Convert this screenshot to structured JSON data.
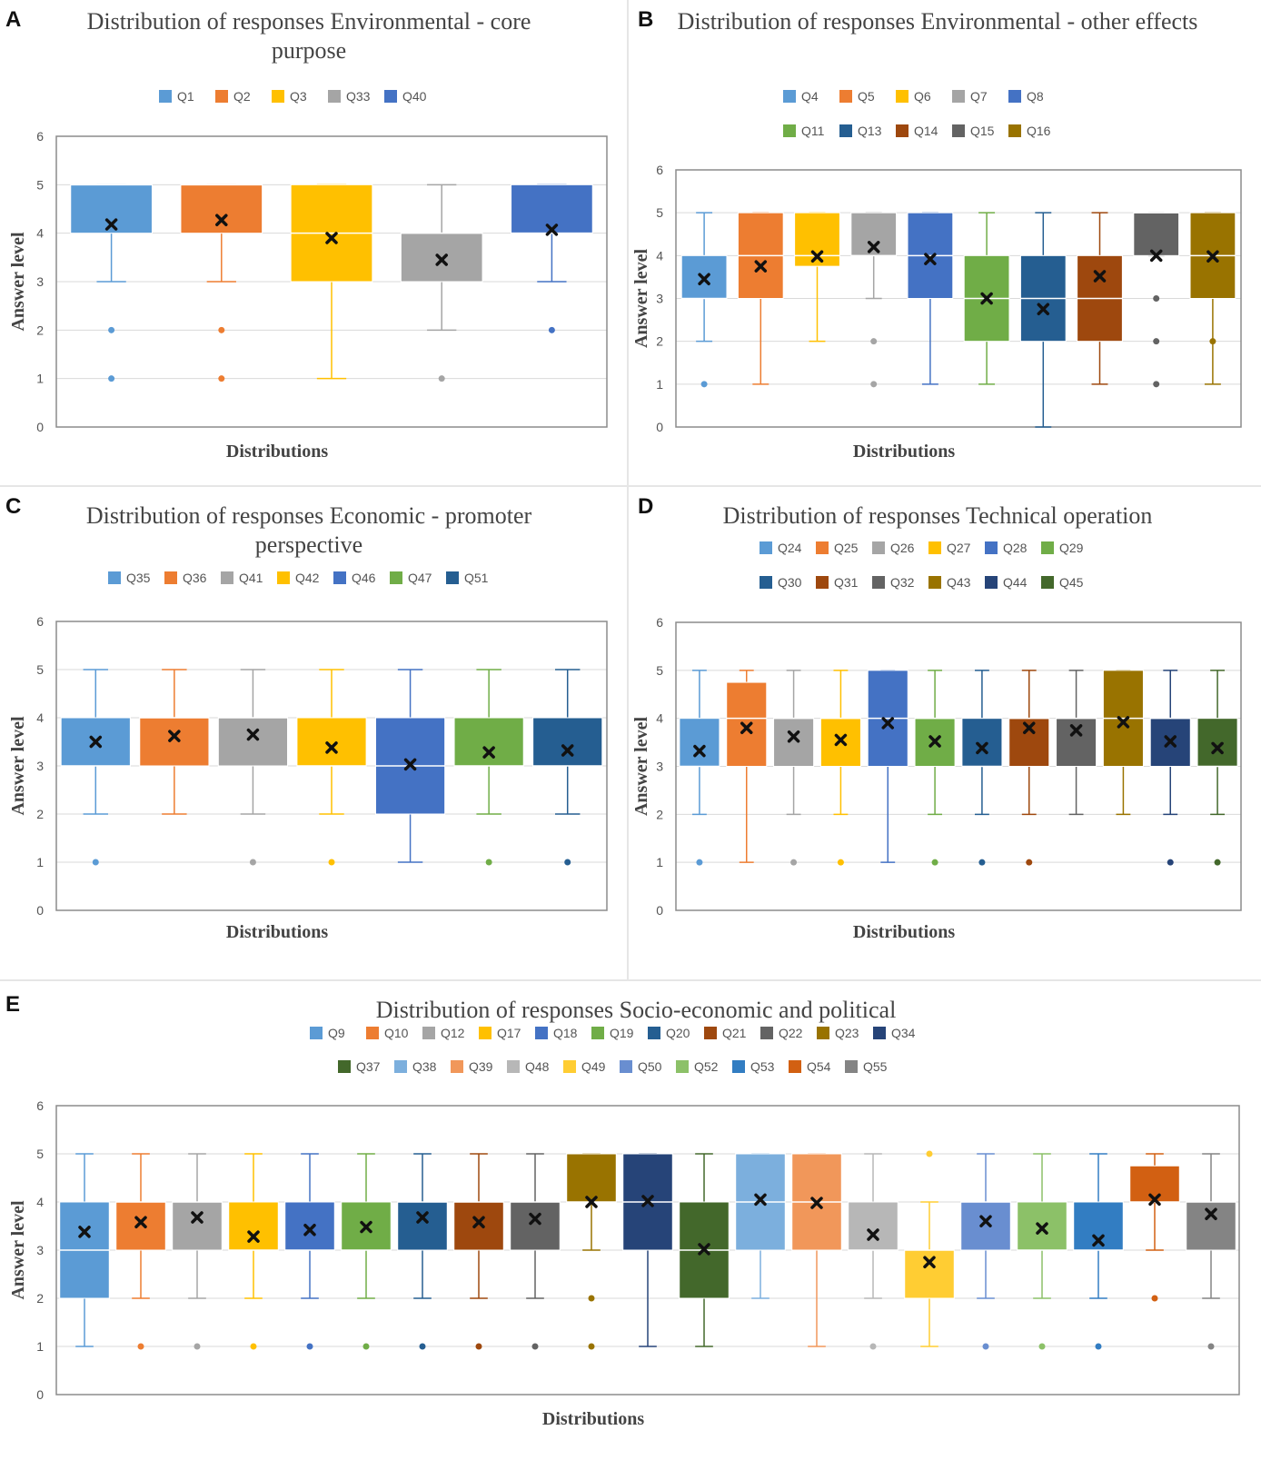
{
  "chart_data": [
    {
      "panel": "A",
      "type": "box",
      "title": "Distribution of responses Environmental - core purpose",
      "xlabel": "Distributions",
      "ylabel": "Answer level",
      "ylim": [
        0,
        6
      ],
      "yticks": [
        "0",
        "1",
        "2",
        "3",
        "4",
        "5",
        "6"
      ],
      "legend_rows": [
        [
          "Q1",
          "Q2",
          "Q3",
          "Q33",
          "Q40"
        ]
      ],
      "series": [
        {
          "name": "Q1",
          "color": "#5B9BD5",
          "min": 3,
          "q1": 4,
          "median": 5,
          "q3": 5,
          "max": 5,
          "mean": 4.18,
          "outliers": [
            2,
            1
          ]
        },
        {
          "name": "Q2",
          "color": "#ED7D31",
          "min": 3,
          "q1": 4,
          "median": 5,
          "q3": 5,
          "max": 5,
          "mean": 4.27,
          "outliers": [
            2,
            1
          ]
        },
        {
          "name": "Q3",
          "color": "#FFC000",
          "min": 1,
          "q1": 3,
          "median": 4,
          "q3": 5,
          "max": 5,
          "mean": 3.9,
          "outliers": []
        },
        {
          "name": "Q33",
          "color": "#A5A5A5",
          "min": 2,
          "q1": 3,
          "median": 4,
          "q3": 4,
          "max": 5,
          "mean": 3.45,
          "outliers": [
            1
          ]
        },
        {
          "name": "Q40",
          "color": "#4472C4",
          "min": 3,
          "q1": 4,
          "median": 4,
          "q3": 5,
          "max": 5,
          "mean": 4.07,
          "outliers": [
            2
          ]
        }
      ]
    },
    {
      "panel": "B",
      "type": "box",
      "title": "Distribution of responses Environmental - other effects",
      "xlabel": "Distributions",
      "ylabel": "Answer level",
      "ylim": [
        0,
        6
      ],
      "yticks": [
        "0",
        "1",
        "2",
        "3",
        "4",
        "5",
        "6"
      ],
      "legend_rows": [
        [
          "Q4",
          "Q5",
          "Q6",
          "Q7",
          "Q8"
        ],
        [
          "Q11",
          "Q13",
          "Q14",
          "Q15",
          "Q16"
        ]
      ],
      "series": [
        {
          "name": "Q4",
          "color": "#5B9BD5",
          "min": 2,
          "q1": 3,
          "median": 3,
          "q3": 4,
          "max": 5,
          "mean": 3.45,
          "outliers": [
            1
          ]
        },
        {
          "name": "Q5",
          "color": "#ED7D31",
          "min": 1,
          "q1": 3,
          "median": 4,
          "q3": 5,
          "max": 5,
          "mean": 3.75,
          "outliers": []
        },
        {
          "name": "Q6",
          "color": "#FFC000",
          "min": 2,
          "q1": 3.75,
          "median": 4,
          "q3": 5,
          "max": 5,
          "mean": 3.98,
          "outliers": []
        },
        {
          "name": "Q7",
          "color": "#A5A5A5",
          "min": 3,
          "q1": 4,
          "median": 4,
          "q3": 5,
          "max": 5,
          "mean": 4.2,
          "outliers": [
            2,
            1
          ]
        },
        {
          "name": "Q8",
          "color": "#4472C4",
          "min": 1,
          "q1": 3,
          "median": 4,
          "q3": 5,
          "max": 5,
          "mean": 3.92,
          "outliers": []
        },
        {
          "name": "Q11",
          "color": "#70AD47",
          "min": 1,
          "q1": 2,
          "median": 3,
          "q3": 4,
          "max": 5,
          "mean": 3.0,
          "outliers": []
        },
        {
          "name": "Q13",
          "color": "#255E91",
          "min": 0,
          "q1": 2,
          "median": 3,
          "q3": 4,
          "max": 5,
          "mean": 2.75,
          "outliers": []
        },
        {
          "name": "Q14",
          "color": "#9E480E",
          "min": 1,
          "q1": 2,
          "median": 3,
          "q3": 4,
          "max": 5,
          "mean": 3.52,
          "outliers": []
        },
        {
          "name": "Q15",
          "color": "#636363",
          "min": 4,
          "q1": 4,
          "median": 5,
          "q3": 5,
          "max": 5,
          "mean": 4.0,
          "outliers": [
            3,
            2,
            1
          ]
        },
        {
          "name": "Q16",
          "color": "#997300",
          "min": 1,
          "q1": 3,
          "median": 4,
          "q3": 5,
          "max": 5,
          "mean": 3.98,
          "outliers": [
            2
          ]
        }
      ]
    },
    {
      "panel": "C",
      "type": "box",
      "title": "Distribution of responses Economic - promoter perspective",
      "xlabel": "Distributions",
      "ylabel": "Answer level",
      "ylim": [
        0,
        6
      ],
      "yticks": [
        "0",
        "1",
        "2",
        "3",
        "4",
        "5",
        "6"
      ],
      "legend_rows": [
        [
          "Q35",
          "Q36",
          "Q41",
          "Q42",
          "Q46",
          "Q47",
          "Q51"
        ]
      ],
      "series": [
        {
          "name": "Q35",
          "color": "#5B9BD5",
          "min": 2,
          "q1": 3,
          "median": 3,
          "q3": 4,
          "max": 5,
          "mean": 3.5,
          "outliers": [
            1
          ]
        },
        {
          "name": "Q36",
          "color": "#ED7D31",
          "min": 2,
          "q1": 3,
          "median": 4,
          "q3": 4,
          "max": 5,
          "mean": 3.62,
          "outliers": []
        },
        {
          "name": "Q41",
          "color": "#A5A5A5",
          "min": 2,
          "q1": 3,
          "median": 4,
          "q3": 4,
          "max": 5,
          "mean": 3.65,
          "outliers": [
            1
          ]
        },
        {
          "name": "Q42",
          "color": "#FFC000",
          "min": 2,
          "q1": 3,
          "median": 3,
          "q3": 4,
          "max": 5,
          "mean": 3.38,
          "outliers": [
            1
          ]
        },
        {
          "name": "Q46",
          "color": "#4472C4",
          "min": 1,
          "q1": 2,
          "median": 3,
          "q3": 4,
          "max": 5,
          "mean": 3.03,
          "outliers": []
        },
        {
          "name": "Q47",
          "color": "#70AD47",
          "min": 2,
          "q1": 3,
          "median": 3,
          "q3": 4,
          "max": 5,
          "mean": 3.28,
          "outliers": [
            1
          ]
        },
        {
          "name": "Q51",
          "color": "#255E91",
          "min": 2,
          "q1": 3,
          "median": 3,
          "q3": 4,
          "max": 5,
          "mean": 3.32,
          "outliers": [
            1
          ]
        }
      ]
    },
    {
      "panel": "D",
      "type": "box",
      "title": "Distribution of responses Technical operation",
      "xlabel": "Distributions",
      "ylabel": "Answer level",
      "ylim": [
        0,
        6
      ],
      "yticks": [
        "0",
        "1",
        "2",
        "3",
        "4",
        "5",
        "6"
      ],
      "legend_rows": [
        [
          "Q24",
          "Q25",
          "Q26",
          "Q27",
          "Q28",
          "Q29"
        ],
        [
          "Q30",
          "Q31",
          "Q32",
          "Q43",
          "Q44",
          "Q45"
        ]
      ],
      "series": [
        {
          "name": "Q24",
          "color": "#5B9BD5",
          "min": 2,
          "q1": 3,
          "median": 3,
          "q3": 4,
          "max": 5,
          "mean": 3.32,
          "outliers": [
            1
          ]
        },
        {
          "name": "Q25",
          "color": "#ED7D31",
          "min": 1,
          "q1": 3,
          "median": 4,
          "q3": 4.75,
          "max": 5,
          "mean": 3.8,
          "outliers": []
        },
        {
          "name": "Q26",
          "color": "#A5A5A5",
          "min": 2,
          "q1": 3,
          "median": 4,
          "q3": 4,
          "max": 5,
          "mean": 3.62,
          "outliers": [
            1
          ]
        },
        {
          "name": "Q27",
          "color": "#FFC000",
          "min": 2,
          "q1": 3,
          "median": 4,
          "q3": 4,
          "max": 5,
          "mean": 3.55,
          "outliers": [
            1
          ]
        },
        {
          "name": "Q28",
          "color": "#4472C4",
          "min": 1,
          "q1": 3,
          "median": 4,
          "q3": 5,
          "max": 5,
          "mean": 3.9,
          "outliers": []
        },
        {
          "name": "Q29",
          "color": "#70AD47",
          "min": 2,
          "q1": 3,
          "median": 4,
          "q3": 4,
          "max": 5,
          "mean": 3.52,
          "outliers": [
            1
          ]
        },
        {
          "name": "Q30",
          "color": "#255E91",
          "min": 2,
          "q1": 3,
          "median": 3,
          "q3": 4,
          "max": 5,
          "mean": 3.38,
          "outliers": [
            1
          ]
        },
        {
          "name": "Q31",
          "color": "#9E480E",
          "min": 2,
          "q1": 3,
          "median": 4,
          "q3": 4,
          "max": 5,
          "mean": 3.8,
          "outliers": [
            1
          ]
        },
        {
          "name": "Q32",
          "color": "#636363",
          "min": 2,
          "q1": 3,
          "median": 4,
          "q3": 4,
          "max": 5,
          "mean": 3.75,
          "outliers": []
        },
        {
          "name": "Q43",
          "color": "#997300",
          "min": 2,
          "q1": 3,
          "median": 4,
          "q3": 5,
          "max": 5,
          "mean": 3.92,
          "outliers": []
        },
        {
          "name": "Q44",
          "color": "#264478",
          "min": 2,
          "q1": 3,
          "median": 4,
          "q3": 4,
          "max": 5,
          "mean": 3.52,
          "outliers": [
            1
          ]
        },
        {
          "name": "Q45",
          "color": "#43682B",
          "min": 2,
          "q1": 3,
          "median": 3,
          "q3": 4,
          "max": 5,
          "mean": 3.38,
          "outliers": [
            1
          ]
        }
      ]
    },
    {
      "panel": "E",
      "type": "box",
      "title": "Distribution of responses Socio-economic and political",
      "xlabel": "Distributions",
      "ylabel": "Answer level",
      "ylim": [
        0,
        6
      ],
      "yticks": [
        "0",
        "1",
        "2",
        "3",
        "4",
        "5",
        "6"
      ],
      "legend_rows": [
        [
          "Q9",
          "Q10",
          "Q12",
          "Q17",
          "Q18",
          "Q19",
          "Q20",
          "Q21",
          "Q22",
          "Q23",
          "Q34"
        ],
        [
          "Q37",
          "Q38",
          "Q39",
          "Q48",
          "Q49",
          "Q50",
          "Q52",
          "Q53",
          "Q54",
          "Q55"
        ]
      ],
      "series": [
        {
          "name": "Q9",
          "color": "#5B9BD5",
          "min": 1,
          "q1": 2,
          "median": 3,
          "q3": 4,
          "max": 5,
          "mean": 3.38,
          "outliers": []
        },
        {
          "name": "Q10",
          "color": "#ED7D31",
          "min": 2,
          "q1": 3,
          "median": 4,
          "q3": 4,
          "max": 5,
          "mean": 3.58,
          "outliers": [
            1
          ]
        },
        {
          "name": "Q12",
          "color": "#A5A5A5",
          "min": 2,
          "q1": 3,
          "median": 4,
          "q3": 4,
          "max": 5,
          "mean": 3.68,
          "outliers": [
            1
          ]
        },
        {
          "name": "Q17",
          "color": "#FFC000",
          "min": 2,
          "q1": 3,
          "median": 3,
          "q3": 4,
          "max": 5,
          "mean": 3.28,
          "outliers": [
            1
          ]
        },
        {
          "name": "Q18",
          "color": "#4472C4",
          "min": 2,
          "q1": 3,
          "median": 3,
          "q3": 4,
          "max": 5,
          "mean": 3.42,
          "outliers": [
            1
          ]
        },
        {
          "name": "Q19",
          "color": "#70AD47",
          "min": 2,
          "q1": 3,
          "median": 3,
          "q3": 4,
          "max": 5,
          "mean": 3.48,
          "outliers": [
            1
          ]
        },
        {
          "name": "Q20",
          "color": "#255E91",
          "min": 2,
          "q1": 3,
          "median": 4,
          "q3": 4,
          "max": 5,
          "mean": 3.68,
          "outliers": [
            1
          ]
        },
        {
          "name": "Q21",
          "color": "#9E480E",
          "min": 2,
          "q1": 3,
          "median": 4,
          "q3": 4,
          "max": 5,
          "mean": 3.58,
          "outliers": [
            1
          ]
        },
        {
          "name": "Q22",
          "color": "#636363",
          "min": 2,
          "q1": 3,
          "median": 4,
          "q3": 4,
          "max": 5,
          "mean": 3.65,
          "outliers": [
            1
          ]
        },
        {
          "name": "Q23",
          "color": "#997300",
          "min": 3,
          "q1": 4,
          "median": 4,
          "q3": 5,
          "max": 5,
          "mean": 4.0,
          "outliers": [
            2,
            1
          ]
        },
        {
          "name": "Q34",
          "color": "#264478",
          "min": 1,
          "q1": 3,
          "median": 4,
          "q3": 5,
          "max": 5,
          "mean": 4.02,
          "outliers": []
        },
        {
          "name": "Q37",
          "color": "#43682B",
          "min": 1,
          "q1": 2,
          "median": 3,
          "q3": 4,
          "max": 5,
          "mean": 3.02,
          "outliers": []
        },
        {
          "name": "Q38",
          "color": "#7CAFDD",
          "min": 2,
          "q1": 3,
          "median": 4,
          "q3": 5,
          "max": 5,
          "mean": 4.05,
          "outliers": []
        },
        {
          "name": "Q39",
          "color": "#F1975A",
          "min": 1,
          "q1": 3,
          "median": 4,
          "q3": 5,
          "max": 5,
          "mean": 3.98,
          "outliers": []
        },
        {
          "name": "Q48",
          "color": "#B7B7B7",
          "min": 2,
          "q1": 3,
          "median": 3,
          "q3": 4,
          "max": 5,
          "mean": 3.32,
          "outliers": [
            1
          ]
        },
        {
          "name": "Q49",
          "color": "#FFCD33",
          "min": 1,
          "q1": 2,
          "median": 3,
          "q3": 3,
          "max": 4,
          "mean": 2.75,
          "outliers": [
            5
          ]
        },
        {
          "name": "Q50",
          "color": "#698ED0",
          "min": 2,
          "q1": 3,
          "median": 4,
          "q3": 4,
          "max": 5,
          "mean": 3.6,
          "outliers": [
            1
          ]
        },
        {
          "name": "Q52",
          "color": "#8CC168",
          "min": 2,
          "q1": 3,
          "median": 3,
          "q3": 4,
          "max": 5,
          "mean": 3.45,
          "outliers": [
            1
          ]
        },
        {
          "name": "Q53",
          "color": "#327DC2",
          "min": 2,
          "q1": 3,
          "median": 3,
          "q3": 4,
          "max": 5,
          "mean": 3.2,
          "outliers": [
            1
          ]
        },
        {
          "name": "Q54",
          "color": "#D26012",
          "min": 3,
          "q1": 4,
          "median": 4,
          "q3": 4.75,
          "max": 5,
          "mean": 4.05,
          "outliers": [
            2
          ]
        },
        {
          "name": "Q55",
          "color": "#848484",
          "min": 2,
          "q1": 3,
          "median": 4,
          "q3": 4,
          "max": 5,
          "mean": 3.75,
          "outliers": [
            1
          ]
        }
      ]
    }
  ]
}
